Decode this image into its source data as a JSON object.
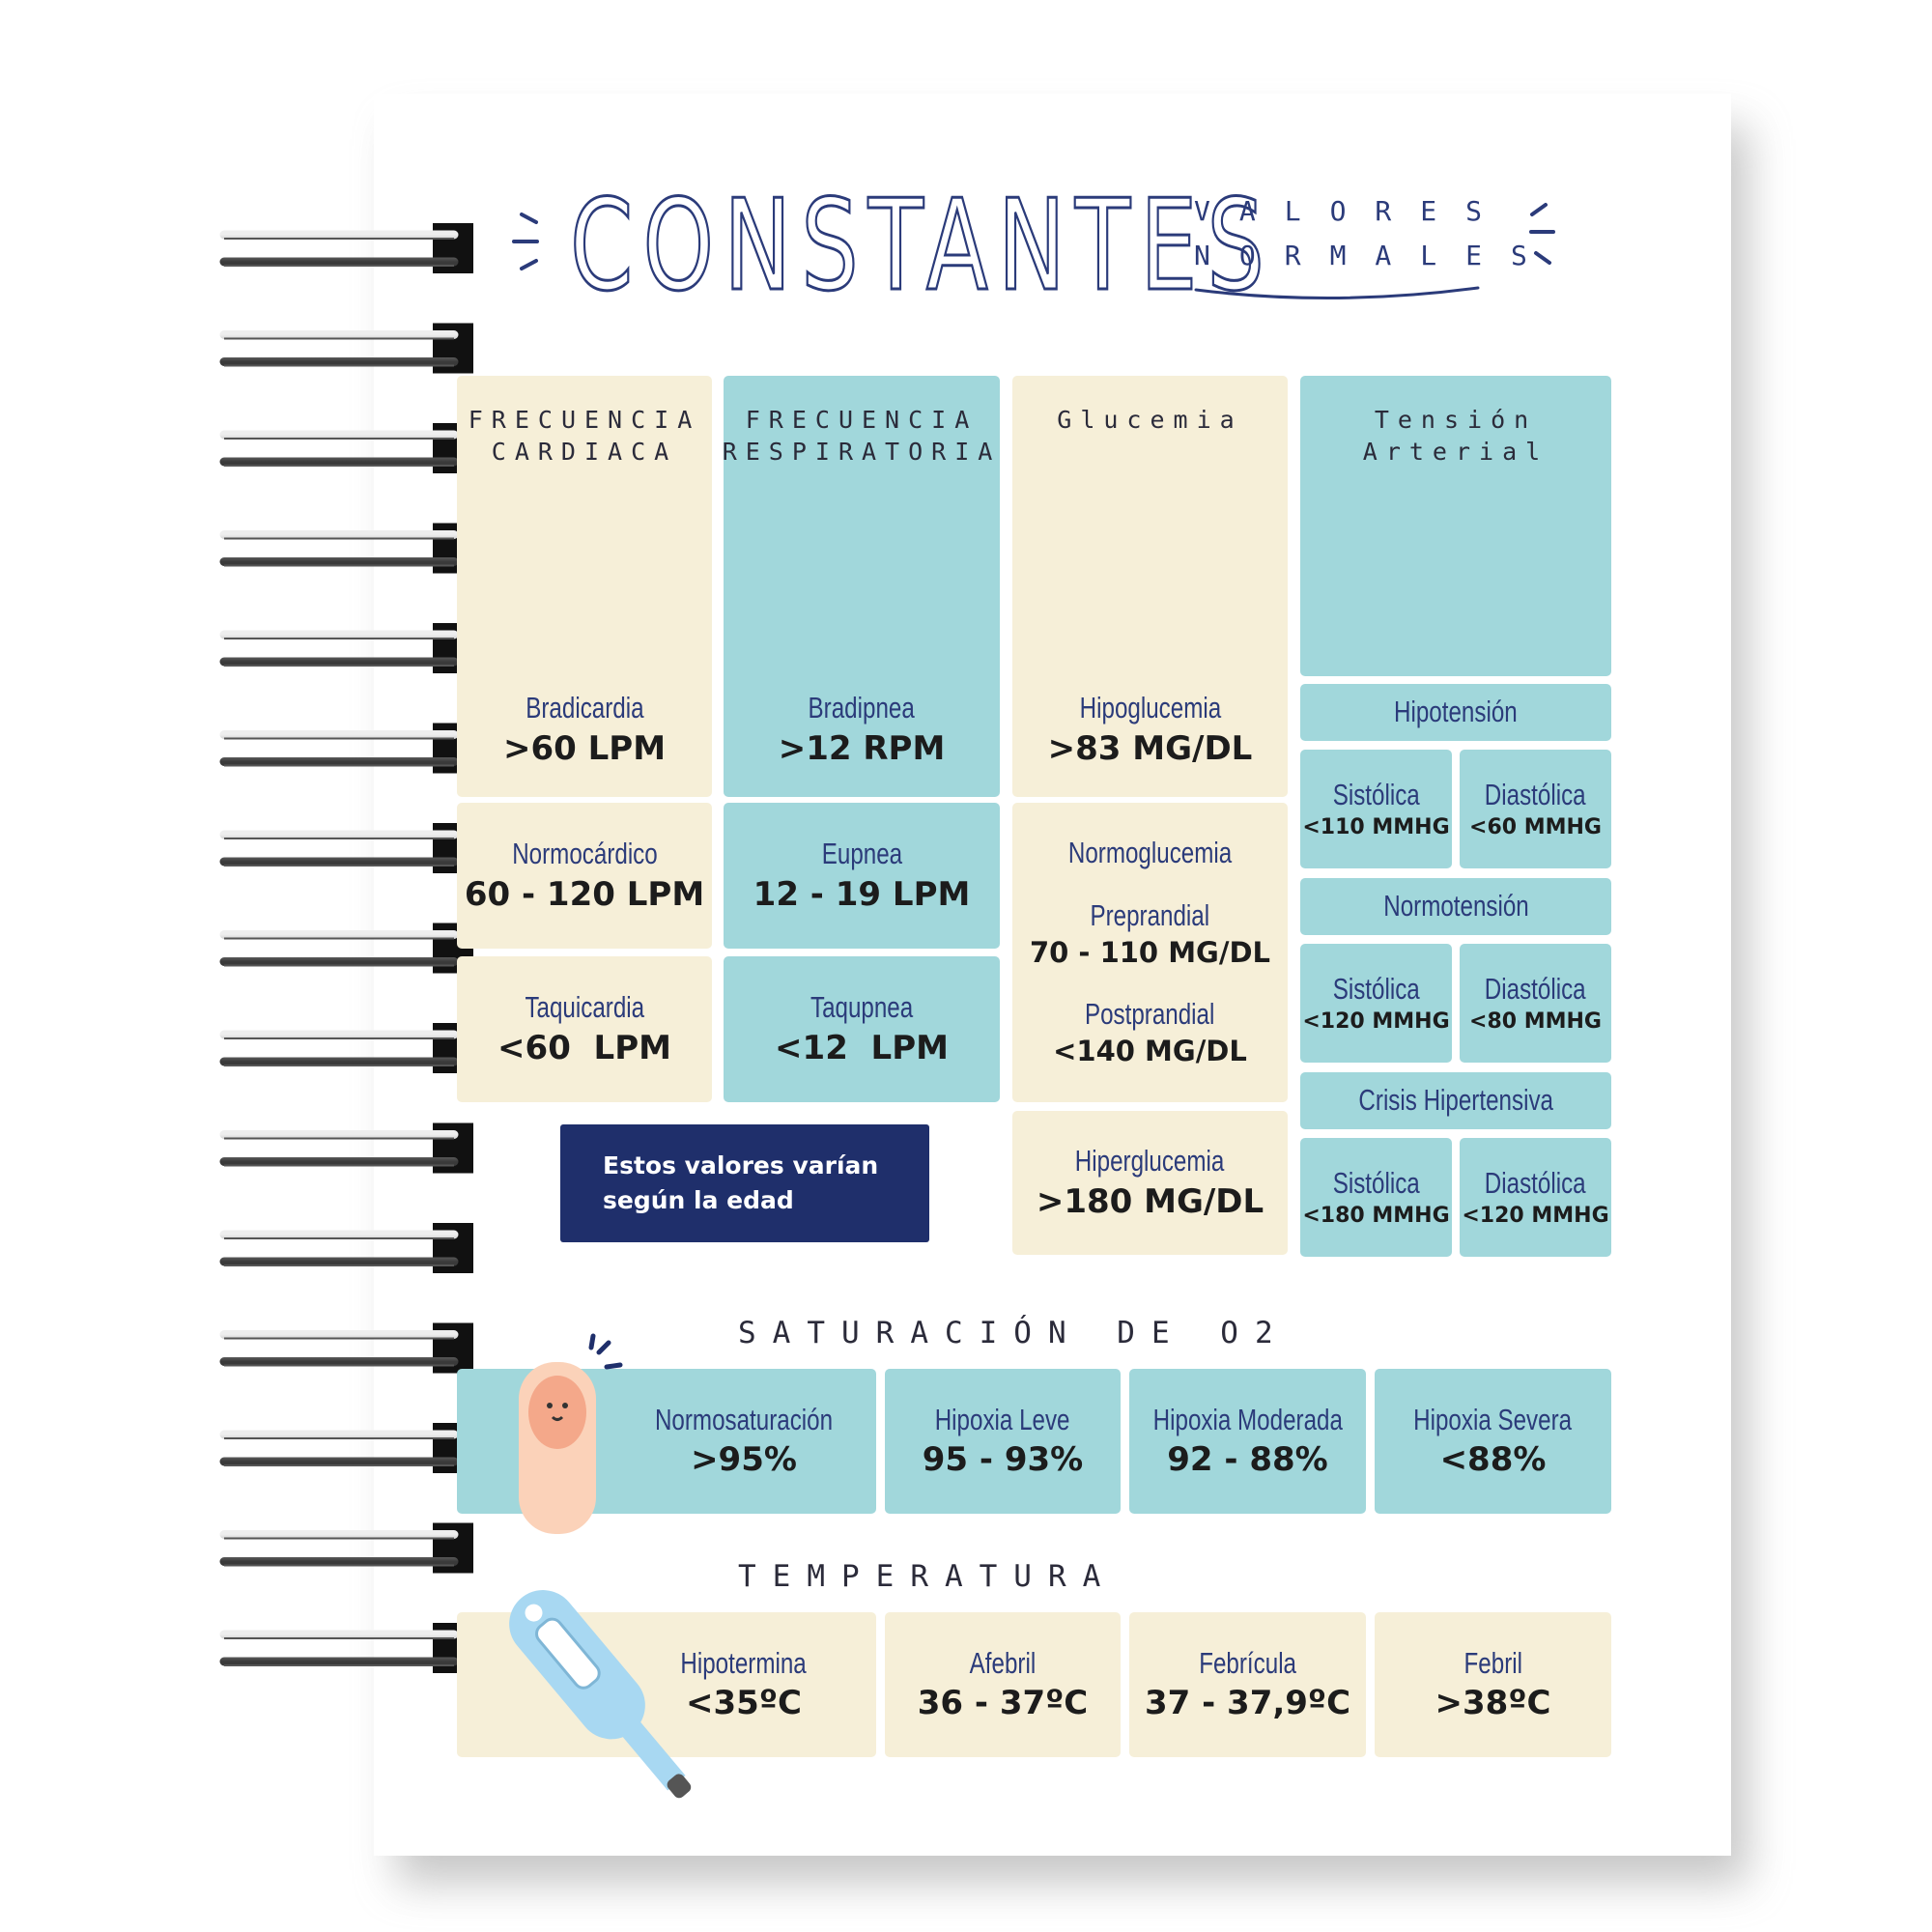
{
  "header": {
    "title": "CONSTANTES",
    "subtitle": [
      "VALORES",
      "NORMALES"
    ]
  },
  "cards": [
    {
      "title": [
        "FRECUENCIA",
        "CARDIACA"
      ],
      "items": [
        {
          "label": "Bradicardia",
          "value": ">60 LPM"
        },
        {
          "label": "Normocárdico",
          "value": "60 - 120 LPM"
        },
        {
          "label": "Taquicardia",
          "value": "<60  LPM"
        }
      ]
    },
    {
      "title": [
        "FRECUENCIA",
        "RESPIRATORIA"
      ],
      "items": [
        {
          "label": "Bradipnea",
          "value": ">12 RPM"
        },
        {
          "label": "Eupnea",
          "value": "12 - 19 LPM"
        },
        {
          "label": "Taqupnea",
          "value": "<12  LPM"
        }
      ]
    },
    {
      "title": [
        "Glucemia"
      ],
      "items": [
        {
          "label": "Hipoglucemia",
          "value": ">83 MG/DL"
        },
        {
          "label": "Normoglucemia",
          "details": [
            {
              "label": "Preprandial",
              "value": "70 - 110 MG/DL"
            },
            {
              "label": "Postprandial",
              "value": "<140 MG/DL"
            }
          ]
        },
        {
          "label": "Hiperglucemia",
          "value": ">180 MG/DL"
        }
      ]
    }
  ],
  "tension": {
    "title": [
      "Tensión",
      "Arterial"
    ],
    "groups": [
      {
        "label": "Hipotensión",
        "cells": [
          {
            "label": "Sistólica",
            "value": "<110 MMHG"
          },
          {
            "label": "Diastólica",
            "value": "<60 MMHG"
          }
        ]
      },
      {
        "label": "Normotensión",
        "cells": [
          {
            "label": "Sistólica",
            "value": "<120 MMHG"
          },
          {
            "label": "Diastólica",
            "value": "<80 MMHG"
          }
        ]
      },
      {
        "label": "Crisis Hipertensiva",
        "cells": [
          {
            "label": "Sistólica",
            "value": "<180 MMHG"
          },
          {
            "label": "Diastólica",
            "value": "<120 MMHG"
          }
        ]
      }
    ]
  },
  "note": [
    "Estos valores varían",
    "según la edad"
  ],
  "saturation": {
    "title": "SATURACIÓN DE O2",
    "items": [
      {
        "label": "Normosaturación",
        "value": ">95%"
      },
      {
        "label": "Hipoxia Leve",
        "value": "95 - 93%"
      },
      {
        "label": "Hipoxia Moderada",
        "value": "92 - 88%"
      },
      {
        "label": "Hipoxia Severa",
        "value": "<88%"
      }
    ]
  },
  "temperature": {
    "title": "TEMPERATURA",
    "items": [
      {
        "label": "Hipotermina",
        "value": "<35ºC"
      },
      {
        "label": "Afebril",
        "value": "36 - 37ºC"
      },
      {
        "label": "Febrícula",
        "value": "37 - 37,9ºC"
      },
      {
        "label": "Febril",
        "value": ">38ºC"
      }
    ]
  }
}
